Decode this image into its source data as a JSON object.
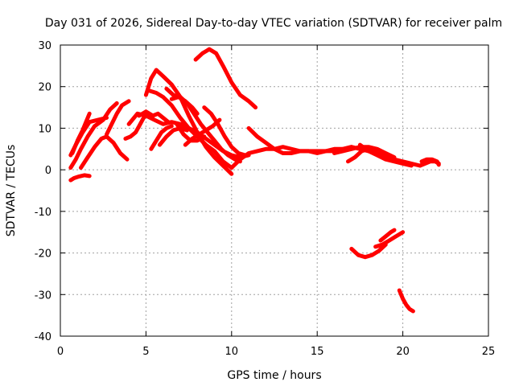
{
  "chart_data": {
    "type": "line",
    "title": "Day 031 of 2026, Sidereal Day-to-day VTEC variation (SDTVAR) for receiver palm",
    "xlabel": "GPS time / hours",
    "ylabel": "SDTVAR / TECUs",
    "xlim": [
      0,
      25
    ],
    "ylim": [
      -40,
      30
    ],
    "xticks": [
      0,
      5,
      10,
      15,
      20,
      25
    ],
    "yticks": [
      -40,
      -30,
      -20,
      -10,
      0,
      10,
      20,
      30
    ],
    "grid": true,
    "legend": "none",
    "color": "#ff0000",
    "series": [
      {
        "name": "arc-01",
        "x": [
          0.6,
          0.8,
          1.1,
          1.4,
          1.7
        ],
        "y": [
          -2.5,
          -2.0,
          -1.6,
          -1.3,
          -1.5
        ]
      },
      {
        "name": "arc-02",
        "x": [
          0.6,
          0.9,
          1.2,
          1.6,
          2.0,
          2.5,
          2.9,
          3.3
        ],
        "y": [
          0.5,
          2.5,
          5.0,
          8.0,
          10.5,
          12.0,
          14.5,
          16.0
        ]
      },
      {
        "name": "arc-03",
        "x": [
          0.6,
          0.9,
          1.3,
          1.7,
          2.2,
          2.7
        ],
        "y": [
          3.5,
          6.0,
          9.0,
          11.5,
          12.0,
          12.5
        ]
      },
      {
        "name": "arc-04",
        "x": [
          0.7,
          1.0,
          1.3,
          1.5,
          1.7
        ],
        "y": [
          4.0,
          7.0,
          9.5,
          11.5,
          13.5
        ]
      },
      {
        "name": "arc-05",
        "x": [
          1.2,
          1.6,
          2.0,
          2.4,
          2.7,
          3.1,
          3.5,
          3.9
        ],
        "y": [
          0.5,
          3.0,
          5.5,
          7.5,
          8.0,
          6.5,
          4.0,
          2.5
        ]
      },
      {
        "name": "arc-06",
        "x": [
          2.7,
          3.0,
          3.3,
          3.6,
          4.0
        ],
        "y": [
          8.5,
          11.0,
          13.5,
          15.5,
          16.5
        ]
      },
      {
        "name": "arc-07",
        "x": [
          3.8,
          4.1,
          4.4,
          4.6,
          4.8,
          5.0
        ],
        "y": [
          7.5,
          8.0,
          9.0,
          10.5,
          12.0,
          13.5
        ]
      },
      {
        "name": "arc-08",
        "x": [
          4.0,
          4.5,
          5.0,
          5.5,
          6.0,
          6.5,
          7.0,
          7.5,
          8.0,
          8.5,
          9.0,
          9.5,
          10.0,
          10.5,
          11.0
        ],
        "y": [
          11.0,
          13.5,
          13.0,
          12.0,
          11.0,
          11.5,
          11.0,
          10.0,
          9.0,
          7.5,
          6.0,
          4.5,
          3.5,
          3.0,
          3.5
        ]
      },
      {
        "name": "arc-09",
        "x": [
          4.6,
          5.0,
          5.4,
          5.7,
          6.0,
          6.3
        ],
        "y": [
          13.0,
          14.0,
          13.0,
          13.5,
          12.5,
          11.5
        ]
      },
      {
        "name": "arc-10",
        "x": [
          5.0,
          5.3,
          5.6,
          6.0,
          6.5,
          7.0,
          7.5,
          8.0,
          8.5,
          9.0,
          9.5,
          10.0
        ],
        "y": [
          18.0,
          22.0,
          24.0,
          22.5,
          20.5,
          17.5,
          13.0,
          9.0,
          5.5,
          3.0,
          1.0,
          -1.0
        ]
      },
      {
        "name": "arc-11",
        "x": [
          5.2,
          5.6,
          6.0,
          6.5,
          7.0,
          7.5,
          8.0,
          8.5,
          9.0,
          9.5,
          10.0
        ],
        "y": [
          19.0,
          18.5,
          17.5,
          15.5,
          12.5,
          10.0,
          8.0,
          6.0,
          4.5,
          2.0,
          0.5
        ]
      },
      {
        "name": "arc-12",
        "x": [
          5.3,
          5.6,
          5.9,
          6.2,
          6.5
        ],
        "y": [
          5.0,
          7.0,
          9.0,
          10.0,
          10.5
        ]
      },
      {
        "name": "arc-13",
        "x": [
          5.8,
          6.2,
          6.6,
          7.0,
          7.4
        ],
        "y": [
          6.0,
          8.0,
          9.5,
          10.0,
          9.5
        ]
      },
      {
        "name": "arc-14",
        "x": [
          6.2,
          6.6,
          7.0,
          7.4,
          7.8,
          8.2,
          8.6,
          9.0,
          9.4,
          9.8,
          10.2,
          10.5
        ],
        "y": [
          19.5,
          18.0,
          17.5,
          16.0,
          13.5,
          11.0,
          9.0,
          7.0,
          5.0,
          3.5,
          2.5,
          2.0
        ]
      },
      {
        "name": "arc-15",
        "x": [
          6.5,
          6.9,
          7.3,
          7.7,
          8.0
        ],
        "y": [
          17.0,
          17.5,
          16.5,
          15.0,
          13.5
        ]
      },
      {
        "name": "arc-16",
        "x": [
          6.8,
          7.2,
          7.6,
          8.0,
          8.4
        ],
        "y": [
          11.0,
          8.5,
          7.0,
          7.0,
          8.0
        ]
      },
      {
        "name": "arc-17",
        "x": [
          7.3,
          7.7,
          8.1,
          8.5,
          8.9,
          9.3
        ],
        "y": [
          6.0,
          7.5,
          8.5,
          9.5,
          10.5,
          12.0
        ]
      },
      {
        "name": "arc-18",
        "x": [
          7.9,
          8.3,
          8.7,
          9.1,
          9.5,
          10.0,
          10.5,
          11.0,
          11.4
        ],
        "y": [
          26.5,
          28.0,
          29.0,
          28.0,
          25.0,
          21.0,
          18.0,
          16.5,
          15.0
        ]
      },
      {
        "name": "arc-19",
        "x": [
          8.4,
          8.8,
          9.2,
          9.6,
          10.0,
          10.4,
          10.8
        ],
        "y": [
          15.0,
          13.5,
          11.0,
          8.0,
          5.5,
          4.0,
          3.5
        ]
      },
      {
        "name": "arc-20",
        "x": [
          10.0,
          10.5,
          11.0,
          11.5,
          12.0,
          12.5,
          13.0,
          13.5,
          14.0,
          14.5,
          15.0,
          15.5,
          16.0,
          16.5,
          17.0,
          17.5,
          18.0
        ],
        "y": [
          0.5,
          2.5,
          4.0,
          4.5,
          5.0,
          5.0,
          5.5,
          5.0,
          4.5,
          4.5,
          4.5,
          4.5,
          5.0,
          5.0,
          5.5,
          5.0,
          4.5
        ]
      },
      {
        "name": "arc-21",
        "x": [
          11.0,
          11.5,
          12.0,
          12.5,
          13.0,
          13.5,
          14.0,
          14.5,
          15.0,
          15.5,
          16.0,
          16.5,
          17.0
        ],
        "y": [
          10.0,
          8.0,
          6.5,
          5.0,
          4.0,
          4.0,
          4.5,
          4.5,
          4.0,
          4.5,
          4.5,
          5.0,
          5.5
        ]
      },
      {
        "name": "arc-22",
        "x": [
          16.0,
          16.5,
          17.0,
          17.5,
          18.0,
          18.5,
          19.0,
          19.5
        ],
        "y": [
          4.0,
          4.5,
          5.0,
          5.5,
          5.5,
          5.0,
          4.0,
          3.0
        ]
      },
      {
        "name": "arc-23",
        "x": [
          16.8,
          17.2,
          17.6,
          18.0,
          18.5,
          19.0,
          19.5,
          20.0,
          20.5,
          21.0
        ],
        "y": [
          2.0,
          3.0,
          4.5,
          5.0,
          4.0,
          3.0,
          2.5,
          2.0,
          1.5,
          1.0
        ]
      },
      {
        "name": "arc-24",
        "x": [
          17.5,
          18.0,
          18.5,
          19.0,
          19.5,
          20.0,
          20.5
        ],
        "y": [
          6.0,
          4.5,
          3.5,
          2.5,
          2.0,
          1.5,
          1.0
        ]
      },
      {
        "name": "arc-25",
        "x": [
          21.0,
          21.3,
          21.6,
          21.9,
          22.1
        ],
        "y": [
          1.0,
          1.5,
          2.0,
          2.0,
          1.5
        ]
      },
      {
        "name": "arc-26",
        "x": [
          21.1,
          21.4,
          21.7,
          22.0,
          22.1
        ],
        "y": [
          2.0,
          2.5,
          2.5,
          2.0,
          1.2
        ]
      },
      {
        "name": "arc-27",
        "x": [
          17.0,
          17.4,
          17.8,
          18.2,
          18.6,
          19.0
        ],
        "y": [
          -19.0,
          -20.5,
          -21.0,
          -20.5,
          -19.5,
          -18.0
        ]
      },
      {
        "name": "arc-28",
        "x": [
          18.4,
          18.8,
          19.2,
          19.6,
          20.0
        ],
        "y": [
          -18.5,
          -18.0,
          -17.0,
          -16.0,
          -15.0
        ]
      },
      {
        "name": "arc-29",
        "x": [
          18.7,
          19.0,
          19.3,
          19.5
        ],
        "y": [
          -17.0,
          -16.0,
          -15.0,
          -14.5
        ]
      },
      {
        "name": "arc-30",
        "x": [
          19.8,
          20.0,
          20.2,
          20.4,
          20.6
        ],
        "y": [
          -29.0,
          -31.0,
          -32.5,
          -33.5,
          -34.0
        ]
      }
    ]
  }
}
